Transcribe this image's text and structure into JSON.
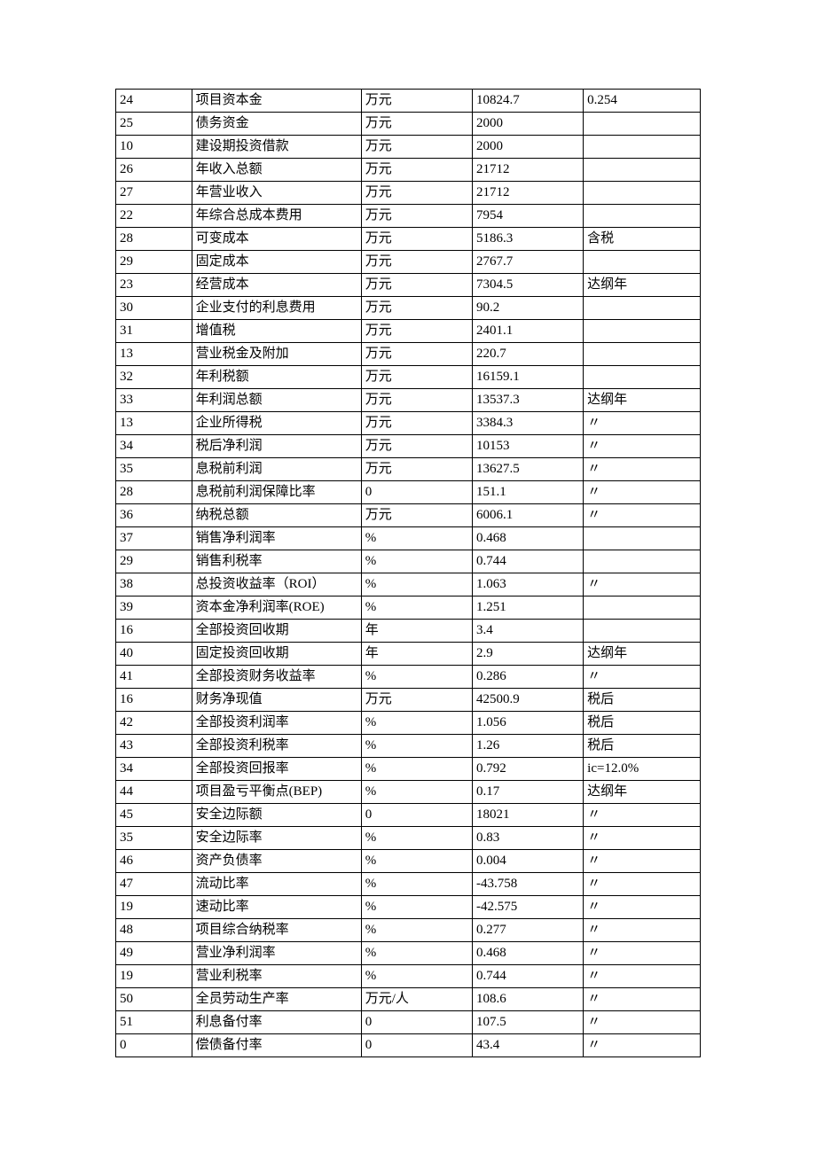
{
  "table": {
    "border_color": "#000000",
    "background_color": "#ffffff",
    "text_color": "#000000",
    "font_size": 15,
    "column_widths_pct": [
      13,
      29,
      19,
      19,
      20
    ],
    "rows": [
      [
        "24",
        "项目资本金",
        "万元",
        "10824.7",
        "0.254"
      ],
      [
        "25",
        "债务资金",
        "万元",
        "2000",
        ""
      ],
      [
        "10",
        "建设期投资借款",
        "万元",
        "2000",
        ""
      ],
      [
        "26",
        "年收入总额",
        "万元",
        "21712",
        ""
      ],
      [
        "27",
        "年营业收入",
        "万元",
        "21712",
        ""
      ],
      [
        "22",
        "年综合总成本费用",
        "万元",
        "7954",
        ""
      ],
      [
        "28",
        "可变成本",
        "万元",
        "5186.3",
        "含税"
      ],
      [
        "29",
        "固定成本",
        "万元",
        "2767.7",
        ""
      ],
      [
        "23",
        "经营成本",
        "万元",
        "7304.5",
        "达纲年"
      ],
      [
        "30",
        "企业支付的利息费用",
        "万元",
        "90.2",
        ""
      ],
      [
        "31",
        "增值税",
        "万元",
        "2401.1",
        ""
      ],
      [
        "13",
        "营业税金及附加",
        "万元",
        "220.7",
        ""
      ],
      [
        "32",
        "年利税额",
        "万元",
        "16159.1",
        ""
      ],
      [
        "33",
        "年利润总额",
        "万元",
        "13537.3",
        "达纲年"
      ],
      [
        "13",
        "企业所得税",
        "万元",
        "3384.3",
        "〃"
      ],
      [
        "34",
        "税后净利润",
        "万元",
        "10153",
        "〃"
      ],
      [
        "35",
        "息税前利润",
        "万元",
        "13627.5",
        "〃"
      ],
      [
        "28",
        "息税前利润保障比率",
        "0",
        "151.1",
        "〃"
      ],
      [
        "36",
        "纳税总额",
        "万元",
        "6006.1",
        "〃"
      ],
      [
        "37",
        "销售净利润率",
        "%",
        "0.468",
        ""
      ],
      [
        "29",
        "销售利税率",
        "%",
        "0.744",
        ""
      ],
      [
        "38",
        "总投资收益率（ROI）",
        "%",
        "1.063",
        "〃"
      ],
      [
        "39",
        "资本金净利润率(ROE)",
        "%",
        "1.251",
        ""
      ],
      [
        "16",
        "全部投资回收期",
        "年",
        "3.4",
        ""
      ],
      [
        "40",
        "固定投资回收期",
        "年",
        "2.9",
        "达纲年"
      ],
      [
        "41",
        "全部投资财务收益率",
        "%",
        "0.286",
        "〃"
      ],
      [
        "16",
        "财务净现值",
        "万元",
        "42500.9",
        "税后"
      ],
      [
        "42",
        "全部投资利润率",
        "%",
        "1.056",
        "税后"
      ],
      [
        "43",
        "全部投资利税率",
        "%",
        "1.26",
        "税后"
      ],
      [
        "34",
        "全部投资回报率",
        "%",
        "0.792",
        "ic=12.0%"
      ],
      [
        "44",
        "项目盈亏平衡点(BEP)",
        "%",
        "0.17",
        "达纲年"
      ],
      [
        "45",
        "安全边际额",
        "0",
        "18021",
        "〃"
      ],
      [
        "35",
        "安全边际率",
        "%",
        "0.83",
        "〃"
      ],
      [
        "46",
        "资产负债率",
        "%",
        "0.004",
        "〃"
      ],
      [
        "47",
        "流动比率",
        "%",
        "-43.758",
        "〃"
      ],
      [
        "19",
        "速动比率",
        "%",
        "-42.575",
        "〃"
      ],
      [
        "48",
        "项目综合纳税率",
        "%",
        "0.277",
        "〃"
      ],
      [
        "49",
        "营业净利润率",
        "%",
        "0.468",
        "〃"
      ],
      [
        "19",
        "营业利税率",
        "%",
        "0.744",
        "〃"
      ],
      [
        "50",
        "全员劳动生产率",
        "万元/人",
        "108.6",
        "〃"
      ],
      [
        "51",
        "利息备付率",
        "0",
        "107.5",
        "〃"
      ],
      [
        "0",
        "偿债备付率",
        "0",
        "43.4",
        "〃"
      ]
    ]
  }
}
